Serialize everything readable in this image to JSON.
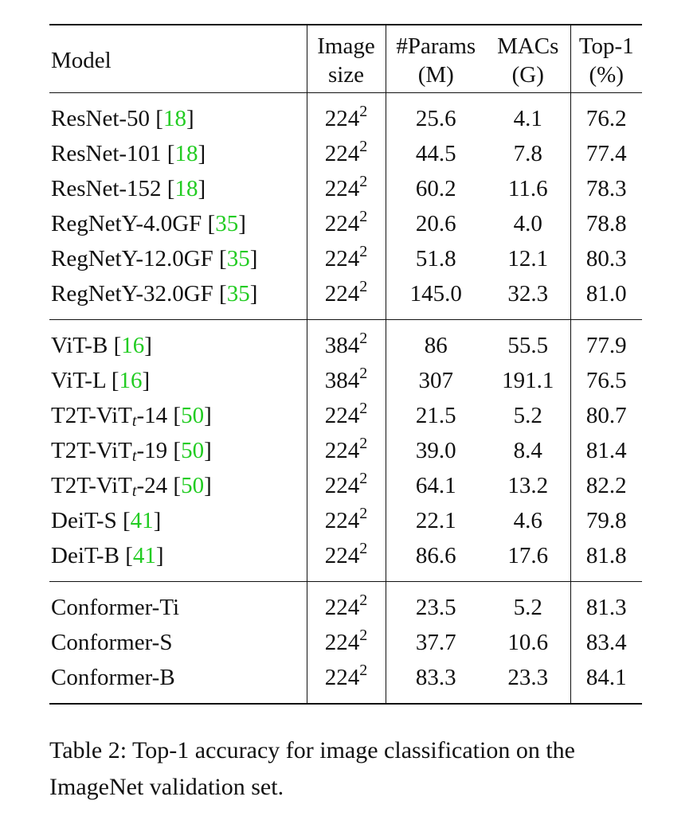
{
  "table": {
    "header": [
      [
        "Model"
      ],
      [
        "Image",
        "size"
      ],
      [
        "#Params",
        "(M)"
      ],
      [
        "MACs",
        "(G)"
      ],
      [
        "Top-1",
        "(%)"
      ]
    ],
    "groups": [
      [
        {
          "model": "ResNet-50",
          "citation": "[18]",
          "size": "224",
          "exp": "2",
          "params": "25.6",
          "macs": "4.1",
          "top1": "76.2"
        },
        {
          "model": "ResNet-101",
          "citation": "[18]",
          "size": "224",
          "exp": "2",
          "params": "44.5",
          "macs": "7.8",
          "top1": "77.4"
        },
        {
          "model": "ResNet-152",
          "citation": "[18]",
          "size": "224",
          "exp": "2",
          "params": "60.2",
          "macs": "11.6",
          "top1": "78.3"
        },
        {
          "model": "RegNetY-4.0GF",
          "citation": "[35]",
          "size": "224",
          "exp": "2",
          "params": "20.6",
          "macs": "4.0",
          "top1": "78.8"
        },
        {
          "model": "RegNetY-12.0GF",
          "citation": "[35]",
          "size": "224",
          "exp": "2",
          "params": "51.8",
          "macs": "12.1",
          "top1": "80.3"
        },
        {
          "model": "RegNetY-32.0GF",
          "citation": "[35]",
          "size": "224",
          "exp": "2",
          "params": "145.0",
          "macs": "32.3",
          "top1": "81.0"
        }
      ],
      [
        {
          "model": "ViT-B",
          "citation": "[16]",
          "size": "384",
          "exp": "2",
          "params": "86",
          "macs": "55.5",
          "top1": "77.9"
        },
        {
          "model": "ViT-L",
          "citation": "[16]",
          "size": "384",
          "exp": "2",
          "params": "307",
          "macs": "191.1",
          "top1": "76.5"
        },
        {
          "model": "T2T-ViT",
          "sub": "t",
          "suffix": "-14",
          "citation": "[50]",
          "size": "224",
          "exp": "2",
          "params": "21.5",
          "macs": "5.2",
          "top1": "80.7"
        },
        {
          "model": "T2T-ViT",
          "sub": "t",
          "suffix": "-19",
          "citation": "[50]",
          "size": "224",
          "exp": "2",
          "params": "39.0",
          "macs": "8.4",
          "top1": "81.4"
        },
        {
          "model": "T2T-ViT",
          "sub": "t",
          "suffix": "-24",
          "citation": "[50]",
          "size": "224",
          "exp": "2",
          "params": "64.1",
          "macs": "13.2",
          "top1": "82.2"
        },
        {
          "model": "DeiT-S",
          "citation": "[41]",
          "size": "224",
          "exp": "2",
          "params": "22.1",
          "macs": "4.6",
          "top1": "79.8"
        },
        {
          "model": "DeiT-B",
          "citation": "[41]",
          "size": "224",
          "exp": "2",
          "params": "86.6",
          "macs": "17.6",
          "top1": "81.8"
        }
      ],
      [
        {
          "model": "Conformer-Ti",
          "size": "224",
          "exp": "2",
          "params": "23.5",
          "macs": "5.2",
          "top1": "81.3"
        },
        {
          "model": "Conformer-S",
          "size": "224",
          "exp": "2",
          "params": "37.7",
          "macs": "10.6",
          "top1": "83.4"
        },
        {
          "model": "Conformer-B",
          "size": "224",
          "exp": "2",
          "params": "83.3",
          "macs": "23.3",
          "top1": "84.1"
        }
      ]
    ]
  },
  "caption": "Table 2: Top-1 accuracy for image classification on the ImageNet validation set."
}
